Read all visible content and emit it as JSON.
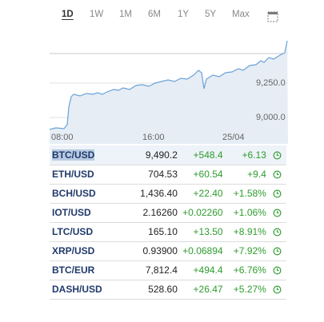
{
  "tabs": [
    {
      "label": "1D",
      "active": true
    },
    {
      "label": "1W",
      "active": false
    },
    {
      "label": "1M",
      "active": false
    },
    {
      "label": "6M",
      "active": false
    },
    {
      "label": "1Y",
      "active": false
    },
    {
      "label": "5Y",
      "active": false
    },
    {
      "label": "Max",
      "active": false
    }
  ],
  "icons": {
    "expand": "expand-icon",
    "status": "clock-icon"
  },
  "colors": {
    "line": "#6aa2d8",
    "fill": "#e6edf5",
    "positive": "#2e9c2e",
    "symbol": "#203a6b"
  },
  "chart_data": {
    "type": "area",
    "x_ticks": [
      "08:00",
      "16:00",
      "25/04"
    ],
    "y_ticks": [
      "9,250.0",
      "9,000.0"
    ]
  },
  "quotes": [
    {
      "symbol": "BTC/USD",
      "price": "9,490.2",
      "change": "+548.4",
      "percent": "+6.13"
    },
    {
      "symbol": "ETH/USD",
      "price": "704.53",
      "change": "+60.54",
      "percent": "+9.4"
    },
    {
      "symbol": "BCH/USD",
      "price": "1,436.40",
      "change": "+22.40",
      "percent": "+1.58%"
    },
    {
      "symbol": "IOT/USD",
      "price": "2.16260",
      "change": "+0.02260",
      "percent": "+1.06%"
    },
    {
      "symbol": "LTC/USD",
      "price": "165.10",
      "change": "+13.50",
      "percent": "+8.91%"
    },
    {
      "symbol": "XRP/USD",
      "price": "0.93900",
      "change": "+0.06894",
      "percent": "+7.92%"
    },
    {
      "symbol": "BTC/EUR",
      "price": "7,812.4",
      "change": "+494.4",
      "percent": "+6.76%"
    },
    {
      "symbol": "DASH/USD",
      "price": "528.60",
      "change": "+26.47",
      "percent": "+5.27%"
    }
  ]
}
